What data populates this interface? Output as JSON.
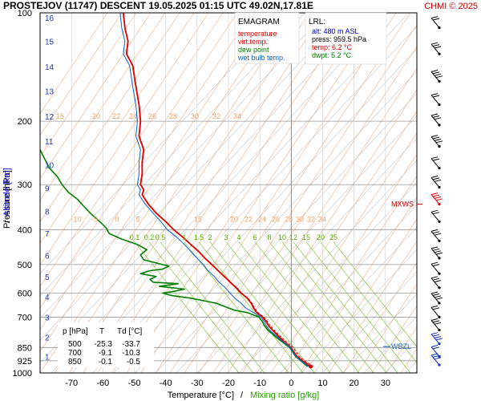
{
  "header": {
    "title": "PROSTEJOV (11747)   DESCENT   19.05.2025 01:15 UTC  49.02N,17.81E",
    "copyright": "CHMI © 2025"
  },
  "legend": {
    "heading": "EMAGRAM",
    "items": [
      {
        "label": "temperature",
        "color": "#e00000"
      },
      {
        "label": "virt.temp.",
        "color": "#e00000"
      },
      {
        "label": "dew point",
        "color": "#008000"
      },
      {
        "label": "wet bulb temp.",
        "color": "#1060d0"
      }
    ]
  },
  "lrl": {
    "heading": "LRL:",
    "lines": [
      {
        "text": "alt: 480 m ASL",
        "color": "#0000cc"
      },
      {
        "text": "press: 959.5 hPa",
        "color": "#000000"
      },
      {
        "text": "temp: 6.2 °C",
        "color": "#e00000"
      },
      {
        "text": "dwpt: 5.2 °C",
        "color": "#008000"
      }
    ]
  },
  "levels_table": {
    "headers": [
      "p [hPa]",
      "T",
      "Td [°C]"
    ],
    "rows": [
      [
        "500",
        "-25.3",
        "-33.7"
      ],
      [
        "700",
        "-9.1",
        "-10.3"
      ],
      [
        "850",
        "-0.1",
        "-0.5"
      ]
    ]
  },
  "markers": {
    "mxws": "MXWS",
    "wbzl": "WBZL"
  },
  "axes": {
    "xlabel_temp": "Temperature [°C]",
    "xlabel_sep": "/",
    "xlabel_mix": "Mixing ratio [g/kg]",
    "ylabel_pressure": "Pressure [hPa]",
    "ylabel_sep": "/",
    "ylabel_alt": "Altitude [km]"
  },
  "chart_data": {
    "type": "line",
    "x_scale": "linear",
    "y_scale": "log",
    "xlim": [
      -80,
      40
    ],
    "ylim": [
      1000,
      100
    ],
    "xticks": [
      -70,
      -60,
      -50,
      -40,
      -30,
      -20,
      -10,
      0,
      10,
      20,
      30
    ],
    "pressure_ticks": [
      100,
      200,
      300,
      400,
      500,
      600,
      700,
      850,
      925,
      1000
    ],
    "altitude_ticks": [
      {
        "km": 1,
        "p": 900
      },
      {
        "km": 2,
        "p": 795
      },
      {
        "km": 3,
        "p": 700
      },
      {
        "km": 4,
        "p": 615
      },
      {
        "km": 5,
        "p": 540
      },
      {
        "km": 6,
        "p": 472
      },
      {
        "km": 7,
        "p": 410
      },
      {
        "km": 8,
        "p": 356
      },
      {
        "km": 9,
        "p": 307
      },
      {
        "km": 10,
        "p": 264
      },
      {
        "km": 11,
        "p": 227
      },
      {
        "km": 12,
        "p": 194
      },
      {
        "km": 13,
        "p": 165
      },
      {
        "km": 14,
        "p": 141
      },
      {
        "km": 15,
        "p": 120
      },
      {
        "km": 16,
        "p": 103
      }
    ],
    "mixing_ratio_labels_low": [
      "0.1",
      "0.2",
      "0.5",
      "1",
      "1.5",
      "2",
      "3",
      "4",
      "6",
      "8",
      "10",
      "12",
      "15",
      "20",
      "25"
    ],
    "mixing_ratio_labels_low_p": 420,
    "upper_label_row_1": [
      "-10",
      "-5",
      "0",
      "5",
      "15",
      "20",
      "22",
      "24",
      "26",
      "28",
      "30",
      "32",
      "34"
    ],
    "upper_label_row_2": [
      "15",
      "20",
      "22",
      "24",
      "26",
      "28",
      "30",
      "32",
      "34"
    ],
    "series": [
      {
        "name": "temperature",
        "color": "#e00000",
        "points": [
          [
            960,
            6.2
          ],
          [
            925,
            3.6
          ],
          [
            900,
            1.8
          ],
          [
            850,
            -0.1
          ],
          [
            800,
            -3.5
          ],
          [
            760,
            -6.0
          ],
          [
            740,
            -7.2
          ],
          [
            720,
            -8.0
          ],
          [
            700,
            -9.1
          ],
          [
            680,
            -11.0
          ],
          [
            660,
            -12.0
          ],
          [
            640,
            -12.8
          ],
          [
            620,
            -14.0
          ],
          [
            600,
            -16.0
          ],
          [
            580,
            -17.5
          ],
          [
            560,
            -19.5
          ],
          [
            540,
            -21.3
          ],
          [
            520,
            -23.3
          ],
          [
            500,
            -25.3
          ],
          [
            480,
            -27.5
          ],
          [
            460,
            -29.5
          ],
          [
            440,
            -32.0
          ],
          [
            420,
            -34.5
          ],
          [
            400,
            -37.5
          ],
          [
            380,
            -40.0
          ],
          [
            360,
            -43.0
          ],
          [
            340,
            -45.5
          ],
          [
            320,
            -47.5
          ],
          [
            310,
            -47.0
          ],
          [
            300,
            -48.0
          ],
          [
            280,
            -47.5
          ],
          [
            260,
            -47.5
          ],
          [
            240,
            -47.0
          ],
          [
            220,
            -48.5
          ],
          [
            200,
            -48.0
          ],
          [
            180,
            -48.5
          ],
          [
            160,
            -49.5
          ],
          [
            140,
            -50.5
          ],
          [
            130,
            -52.5
          ],
          [
            120,
            -52.0
          ],
          [
            110,
            -53.0
          ],
          [
            100,
            -53.5
          ]
        ]
      },
      {
        "name": "virt.temp.",
        "color": "#e00000",
        "points": [
          [
            960,
            7.0
          ],
          [
            925,
            4.3
          ],
          [
            900,
            2.5
          ],
          [
            850,
            0.6
          ],
          [
            800,
            -2.9
          ],
          [
            760,
            -5.5
          ],
          [
            740,
            -6.7
          ],
          [
            720,
            -7.6
          ],
          [
            700,
            -8.7
          ],
          [
            680,
            -10.6
          ],
          [
            660,
            -11.7
          ],
          [
            640,
            -12.5
          ],
          [
            620,
            -13.8
          ],
          [
            600,
            -15.8
          ],
          [
            580,
            -17.3
          ],
          [
            560,
            -19.3
          ],
          [
            540,
            -21.2
          ],
          [
            520,
            -23.2
          ],
          [
            500,
            -25.2
          ],
          [
            480,
            -27.4
          ],
          [
            460,
            -29.4
          ],
          [
            440,
            -31.9
          ],
          [
            420,
            -34.4
          ],
          [
            400,
            -37.4
          ],
          [
            380,
            -39.9
          ],
          [
            360,
            -42.9
          ],
          [
            340,
            -45.4
          ],
          [
            320,
            -47.4
          ],
          [
            310,
            -46.9
          ],
          [
            300,
            -47.9
          ],
          [
            280,
            -47.4
          ],
          [
            260,
            -47.4
          ],
          [
            240,
            -46.9
          ],
          [
            220,
            -48.4
          ],
          [
            200,
            -47.9
          ],
          [
            180,
            -48.4
          ],
          [
            160,
            -49.4
          ],
          [
            140,
            -50.4
          ],
          [
            130,
            -52.4
          ],
          [
            120,
            -51.9
          ],
          [
            110,
            -52.9
          ],
          [
            100,
            -53.4
          ]
        ]
      },
      {
        "name": "dew point",
        "color": "#008000",
        "points": [
          [
            960,
            5.2
          ],
          [
            925,
            3.0
          ],
          [
            900,
            1.4
          ],
          [
            850,
            -0.5
          ],
          [
            800,
            -4.5
          ],
          [
            760,
            -7.5
          ],
          [
            740,
            -8.5
          ],
          [
            720,
            -9.2
          ],
          [
            700,
            -10.3
          ],
          [
            680,
            -14.0
          ],
          [
            670,
            -18.0
          ],
          [
            660,
            -20.0
          ],
          [
            650,
            -22.0
          ],
          [
            640,
            -24.0
          ],
          [
            630,
            -28.0
          ],
          [
            620,
            -32.0
          ],
          [
            610,
            -38.0
          ],
          [
            600,
            -41.0
          ],
          [
            595,
            -38.0
          ],
          [
            585,
            -34.0
          ],
          [
            575,
            -42.0
          ],
          [
            565,
            -36.0
          ],
          [
            560,
            -44.0
          ],
          [
            550,
            -45.0
          ],
          [
            540,
            -43.0
          ],
          [
            530,
            -48.0
          ],
          [
            520,
            -45.0
          ],
          [
            515,
            -41.0
          ],
          [
            505,
            -39.0
          ],
          [
            495,
            -43.0
          ],
          [
            485,
            -47.0
          ],
          [
            470,
            -48.0
          ],
          [
            455,
            -46.0
          ],
          [
            440,
            -49.0
          ],
          [
            425,
            -54.0
          ],
          [
            410,
            -58.0
          ],
          [
            395,
            -59.0
          ],
          [
            380,
            -61.0
          ],
          [
            360,
            -64.0
          ],
          [
            345,
            -66.0
          ],
          [
            330,
            -68.0
          ],
          [
            315,
            -71.0
          ],
          [
            300,
            -73.0
          ],
          [
            285,
            -74.5
          ],
          [
            270,
            -77.0
          ],
          [
            255,
            -78.5
          ],
          [
            240,
            -80.0
          ]
        ]
      },
      {
        "name": "wet bulb temp.",
        "color": "#1060d0",
        "points": [
          [
            960,
            5.6
          ],
          [
            925,
            3.2
          ],
          [
            900,
            1.5
          ],
          [
            850,
            -0.3
          ],
          [
            800,
            -4.0
          ],
          [
            760,
            -6.9
          ],
          [
            740,
            -7.9
          ],
          [
            720,
            -8.6
          ],
          [
            700,
            -9.6
          ],
          [
            680,
            -12.0
          ],
          [
            660,
            -14.5
          ],
          [
            640,
            -16.0
          ],
          [
            620,
            -18.0
          ],
          [
            600,
            -19.5
          ],
          [
            580,
            -21.0
          ],
          [
            560,
            -23.0
          ],
          [
            540,
            -24.5
          ],
          [
            520,
            -26.5
          ],
          [
            500,
            -28.0
          ],
          [
            480,
            -30.0
          ],
          [
            460,
            -32.0
          ],
          [
            440,
            -34.0
          ],
          [
            420,
            -36.5
          ],
          [
            400,
            -39.5
          ],
          [
            380,
            -41.5
          ],
          [
            360,
            -44.0
          ],
          [
            340,
            -46.5
          ],
          [
            320,
            -48.5
          ],
          [
            310,
            -48.0
          ],
          [
            300,
            -49.0
          ],
          [
            280,
            -48.5
          ],
          [
            260,
            -48.5
          ],
          [
            240,
            -48.0
          ],
          [
            220,
            -49.5
          ],
          [
            200,
            -49.0
          ],
          [
            180,
            -49.5
          ],
          [
            160,
            -50.5
          ],
          [
            140,
            -51.5
          ],
          [
            130,
            -53.5
          ],
          [
            120,
            -53.0
          ],
          [
            110,
            -54.0
          ],
          [
            100,
            -54.5
          ]
        ]
      }
    ],
    "mxws_pressure": 340,
    "wbzl_pressure": 845,
    "wind_barb_levels": [
      110,
      130,
      155,
      180,
      205,
      235,
      270,
      305,
      340,
      380,
      430,
      480,
      530,
      580,
      640,
      700,
      760,
      830,
      900,
      950
    ]
  }
}
